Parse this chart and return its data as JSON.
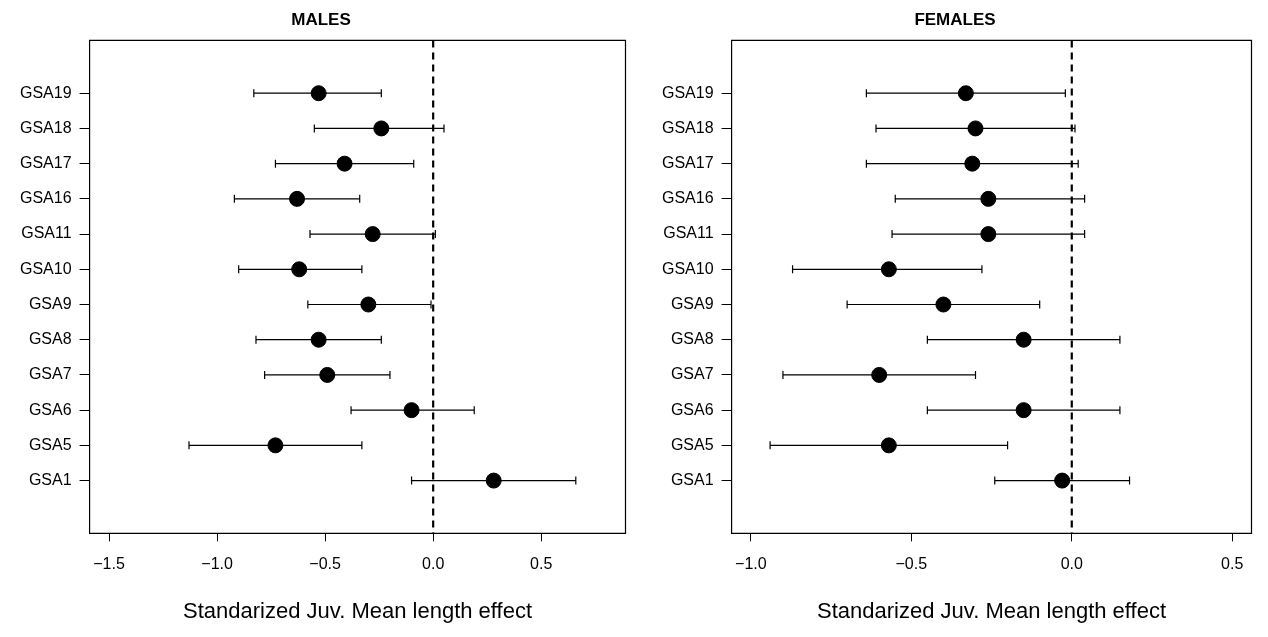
{
  "chart_data": [
    {
      "type": "scatter",
      "orientation": "horizontal",
      "title": "MALES",
      "xlabel": "Standarized Juv. Mean length effect",
      "color": "#000000",
      "marker": "circle",
      "grid": false,
      "categories": [
        "GSA19",
        "GSA18",
        "GSA17",
        "GSA16",
        "GSA11",
        "GSA10",
        "GSA9",
        "GSA8",
        "GSA7",
        "GSA6",
        "GSA5",
        "GSA1"
      ],
      "values": [
        -0.53,
        -0.24,
        -0.41,
        -0.63,
        -0.28,
        -0.62,
        -0.3,
        -0.53,
        -0.49,
        -0.1,
        -0.73,
        0.28
      ],
      "errors": [
        [
          -0.83,
          -0.24
        ],
        [
          -0.55,
          0.05
        ],
        [
          -0.73,
          -0.09
        ],
        [
          -0.92,
          -0.34
        ],
        [
          -0.57,
          0.01
        ],
        [
          -0.9,
          -0.33
        ],
        [
          -0.58,
          -0.01
        ],
        [
          -0.82,
          -0.24
        ],
        [
          -0.78,
          -0.2
        ],
        [
          -0.38,
          0.19
        ],
        [
          -1.13,
          -0.33
        ],
        [
          -0.1,
          0.66
        ]
      ],
      "xlim": [
        -1.59,
        0.89
      ],
      "xticks": [
        {
          "value": -1.5,
          "label": "−1.5"
        },
        {
          "value": -1.0,
          "label": "−1.0"
        },
        {
          "value": -0.5,
          "label": "−0.5"
        },
        {
          "value": 0,
          "label": "0.0"
        },
        {
          "value": 0.5,
          "label": "0.5"
        }
      ],
      "ref_lines": [
        {
          "axis": "x",
          "value": 0,
          "line_style": "dashed",
          "color": "#000000"
        }
      ]
    },
    {
      "type": "scatter",
      "orientation": "horizontal",
      "title": "FEMALES",
      "xlabel": "Standarized Juv. Mean length effect",
      "color": "#000000",
      "marker": "circle",
      "grid": false,
      "categories": [
        "GSA19",
        "GSA18",
        "GSA17",
        "GSA16",
        "GSA11",
        "GSA10",
        "GSA9",
        "GSA8",
        "GSA7",
        "GSA6",
        "GSA5",
        "GSA1"
      ],
      "values": [
        -0.33,
        -0.3,
        -0.31,
        -0.26,
        -0.26,
        -0.57,
        -0.4,
        -0.15,
        -0.6,
        -0.15,
        -0.57,
        -0.03
      ],
      "errors": [
        [
          -0.64,
          -0.02
        ],
        [
          -0.61,
          0.01
        ],
        [
          -0.64,
          0.02
        ],
        [
          -0.55,
          0.04
        ],
        [
          -0.56,
          0.04
        ],
        [
          -0.87,
          -0.28
        ],
        [
          -0.7,
          -0.1
        ],
        [
          -0.45,
          0.15
        ],
        [
          -0.9,
          -0.3
        ],
        [
          -0.45,
          0.15
        ],
        [
          -0.94,
          -0.2
        ],
        [
          -0.24,
          0.18
        ]
      ],
      "xlim": [
        -1.06,
        0.56
      ],
      "xticks": [
        {
          "value": -1.0,
          "label": "−1.0"
        },
        {
          "value": -0.5,
          "label": "−0.5"
        },
        {
          "value": 0,
          "label": "0.0"
        },
        {
          "value": 0.5,
          "label": "0.5"
        }
      ],
      "ref_lines": [
        {
          "axis": "x",
          "value": 0,
          "line_style": "dashed",
          "color": "#000000"
        }
      ]
    }
  ]
}
